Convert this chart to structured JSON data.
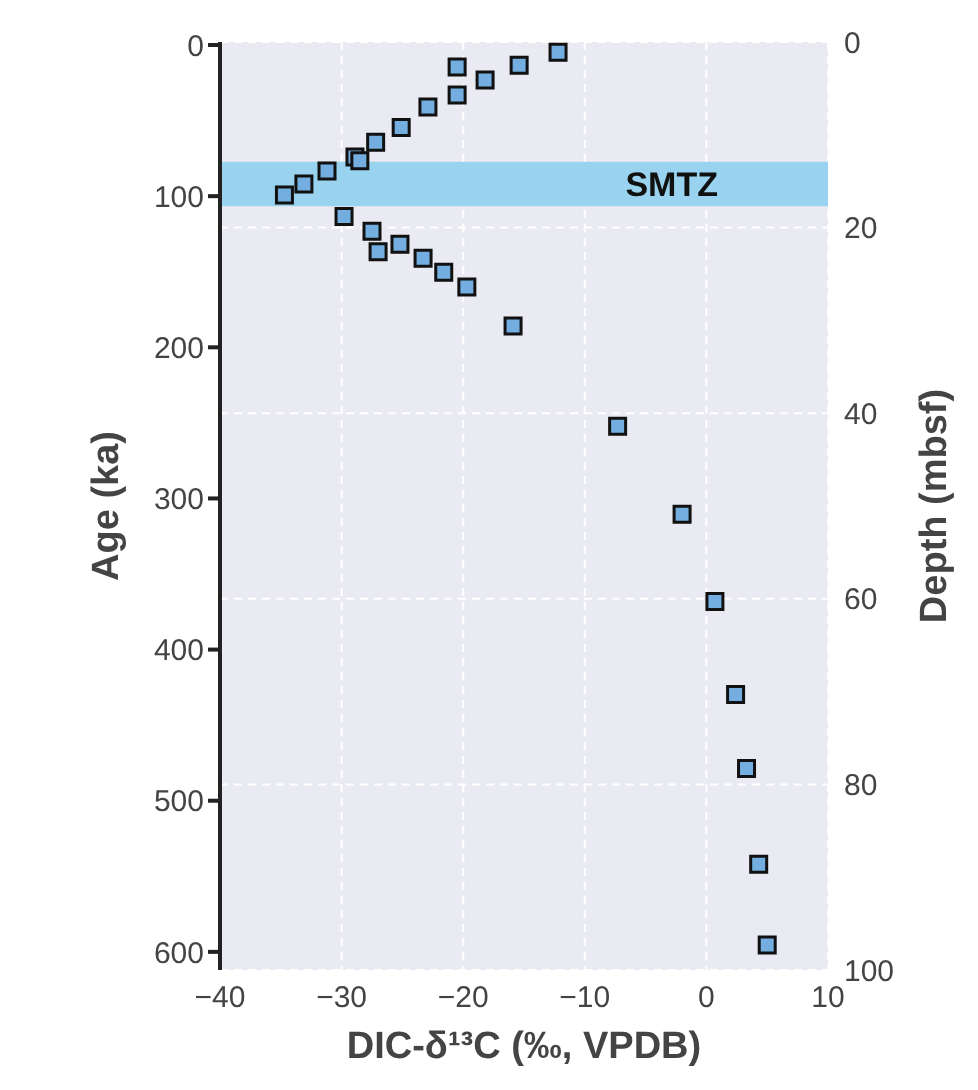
{
  "chart_data": {
    "type": "scatter",
    "xlabel": "DIC-δ¹³C (‰, VPDB)",
    "ylabel": "Age (ka)",
    "y2label": "Depth (mbsf)",
    "xlim": [
      -40,
      10
    ],
    "xticks": [
      {
        "value": -40,
        "label": "−40"
      },
      {
        "value": -30,
        "label": "−30"
      },
      {
        "value": -20,
        "label": "−20"
      },
      {
        "value": -10,
        "label": "−10"
      },
      0,
      10
    ],
    "ylim": [
      612,
      -2
    ],
    "yticks": [
      0,
      100,
      200,
      300,
      400,
      500,
      600
    ],
    "y2lim": [
      100,
      0
    ],
    "y2ticks": [
      0,
      20,
      40,
      60,
      80,
      100
    ],
    "grid": true,
    "marker": "square",
    "bands": [
      {
        "axis": "y2",
        "from": 12.9,
        "to": 17.7,
        "label": "SMTZ",
        "color": "#99d3ef"
      }
    ],
    "series": [
      {
        "color": "#74aee0",
        "axis": "y2",
        "x": [
          -12.2,
          -20.5,
          -15.4,
          -18.2,
          -20.5,
          -22.9,
          -25.1,
          -27.2,
          -28.9,
          -28.5,
          -31.2,
          -33.1,
          -34.7,
          -29.8,
          -27.5,
          -27.0,
          -25.2,
          -23.3,
          -21.6,
          -19.7,
          -15.9,
          -7.3,
          -2.0,
          0.7,
          2.4,
          3.3,
          4.3,
          5.0
        ],
        "values": [
          1.1,
          2.7,
          2.5,
          4.1,
          5.7,
          7.0,
          9.2,
          10.8,
          12.4,
          12.8,
          13.9,
          15.3,
          16.5,
          18.8,
          20.4,
          22.6,
          21.8,
          23.3,
          24.8,
          26.4,
          30.6,
          41.4,
          50.9,
          60.3,
          70.3,
          78.3,
          88.6,
          97.3
        ]
      }
    ]
  }
}
